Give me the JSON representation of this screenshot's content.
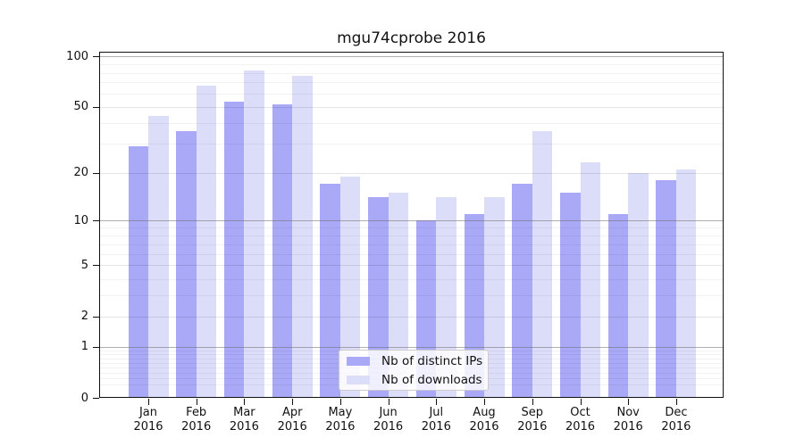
{
  "title": "mgu74cprobe 2016",
  "colors": {
    "bar_distinct_ips": "#a9a9f7",
    "bar_downloads": "#dcddf9",
    "grid_major": "rgba(110,110,110,0.55)",
    "grid_mid": "rgba(0,0,0,0.10)",
    "grid_minor": "rgba(0,0,0,0.05)",
    "axis": "#111111"
  },
  "chart_data": {
    "type": "bar",
    "title": "mgu74cprobe 2016",
    "xlabel": "",
    "ylabel": "",
    "x": {
      "categories": [
        "Jan",
        "Feb",
        "Mar",
        "Apr",
        "May",
        "Jun",
        "Jul",
        "Aug",
        "Sep",
        "Oct",
        "Nov",
        "Dec"
      ],
      "year": "2016"
    },
    "y": {
      "scale": "log1p",
      "tick_labels": [
        100,
        50,
        20,
        10,
        5,
        2,
        1,
        0
      ],
      "top_value": 104,
      "grid": true
    },
    "series": [
      {
        "name": "Nb of distinct IPs",
        "color": "#a9a9f7",
        "values": [
          29,
          36,
          54,
          52,
          17,
          14,
          10,
          11,
          17,
          15,
          11,
          18
        ]
      },
      {
        "name": "Nb of downloads",
        "color": "#dcddf9",
        "values": [
          44,
          67,
          83,
          77,
          19,
          15,
          14,
          14,
          36,
          23,
          20,
          21
        ]
      }
    ],
    "legend": {
      "position": "lower-center",
      "entries": [
        "Nb of distinct IPs",
        "Nb of downloads"
      ]
    }
  }
}
